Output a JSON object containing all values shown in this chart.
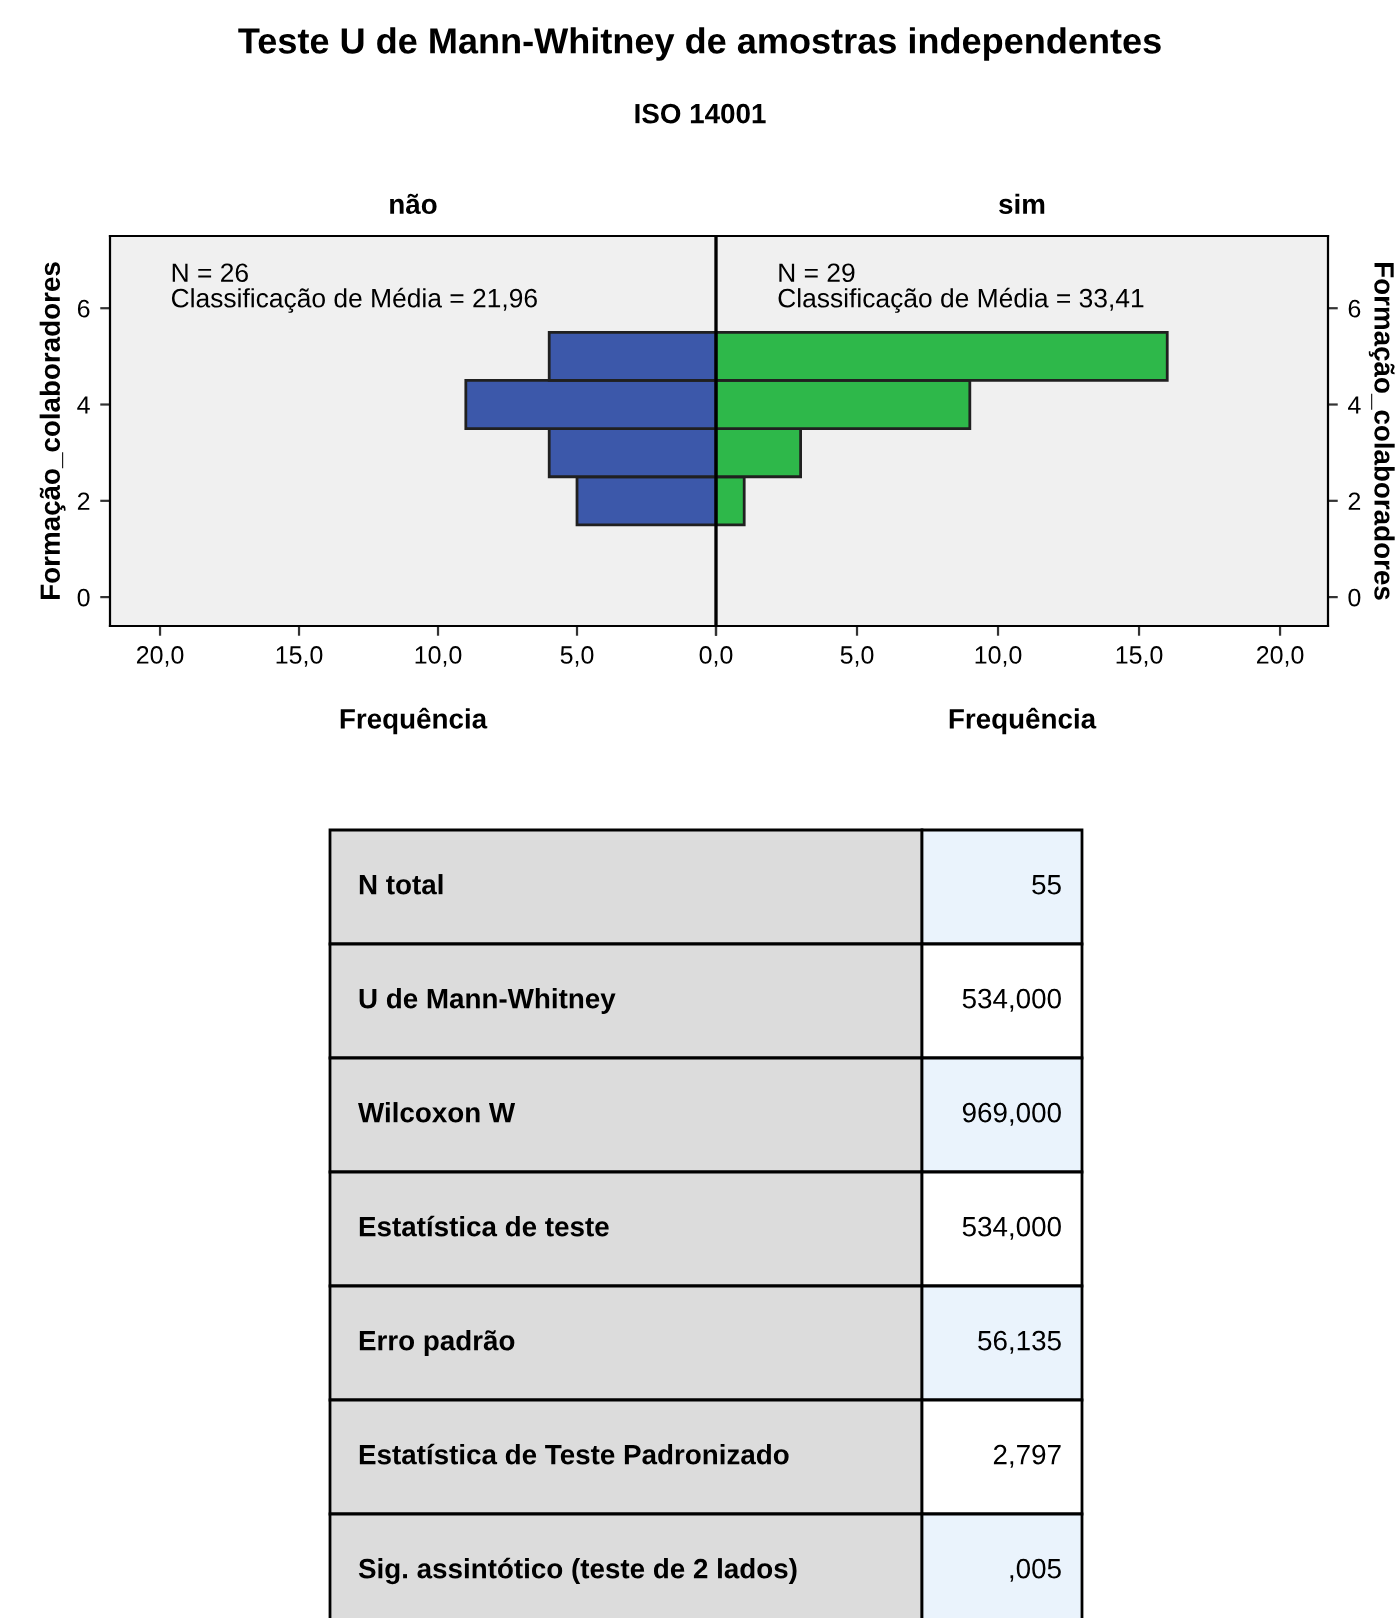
{
  "chart_data": [
    {
      "type": "other",
      "title": "Teste U de Mann-Whitney de amostras independentes",
      "subtitle": "ISO 14001"
    },
    {
      "type": "histogram",
      "orientation": "horizontal",
      "title": "não",
      "xlabel": "Frequência",
      "ylabel": "Formação_colaboradores",
      "bins": [
        1.5,
        2.5,
        3.5,
        4.5,
        5.5
      ],
      "values": [
        5,
        6,
        9,
        6
      ],
      "color": "#3c58aa",
      "xlim": [
        21.8,
        0
      ],
      "xticks": [
        {
          "value": 20,
          "label": "20,0"
        },
        {
          "value": 15,
          "label": "15,0"
        },
        {
          "value": 10,
          "label": "10,0"
        },
        {
          "value": 5,
          "label": "5,0"
        },
        {
          "value": 0,
          "label": null
        }
      ],
      "ylim": [
        -0.6,
        7.5
      ],
      "yticks": [
        0,
        2,
        4,
        6
      ],
      "grid": false,
      "annotations": [
        "N = 26",
        "Classificação de Média = 21,96"
      ]
    },
    {
      "type": "histogram",
      "orientation": "horizontal",
      "title": "sim",
      "xlabel": "Frequência",
      "ylabel": "Formação_colaboradores",
      "bins": [
        1.5,
        2.5,
        3.5,
        4.5,
        5.5
      ],
      "values": [
        1,
        3,
        9,
        16
      ],
      "color": "#2eb84a",
      "xlim": [
        0,
        21.7
      ],
      "xticks": [
        {
          "value": 0,
          "label": "0,0"
        },
        {
          "value": 5,
          "label": "5,0"
        },
        {
          "value": 10,
          "label": "10,0"
        },
        {
          "value": 15,
          "label": "15,0"
        },
        {
          "value": 20,
          "label": "20,0"
        }
      ],
      "ylim": [
        -0.6,
        7.5
      ],
      "yticks": [
        0,
        2,
        4,
        6
      ],
      "grid": false,
      "annotations": [
        "N = 29",
        "Classificação de Média = 33,41"
      ]
    },
    {
      "type": "other",
      "annotations": [
        "N total",
        "55",
        "U de Mann-Whitney",
        "534,000",
        "Wilcoxon W",
        "969,000",
        "Estatística de teste",
        "534,000",
        "Erro padrão",
        "56,135",
        "Estatística de Teste Padronizado",
        "2,797",
        "Sig. assintótico (teste de 2 lados)",
        ",005"
      ]
    }
  ]
}
